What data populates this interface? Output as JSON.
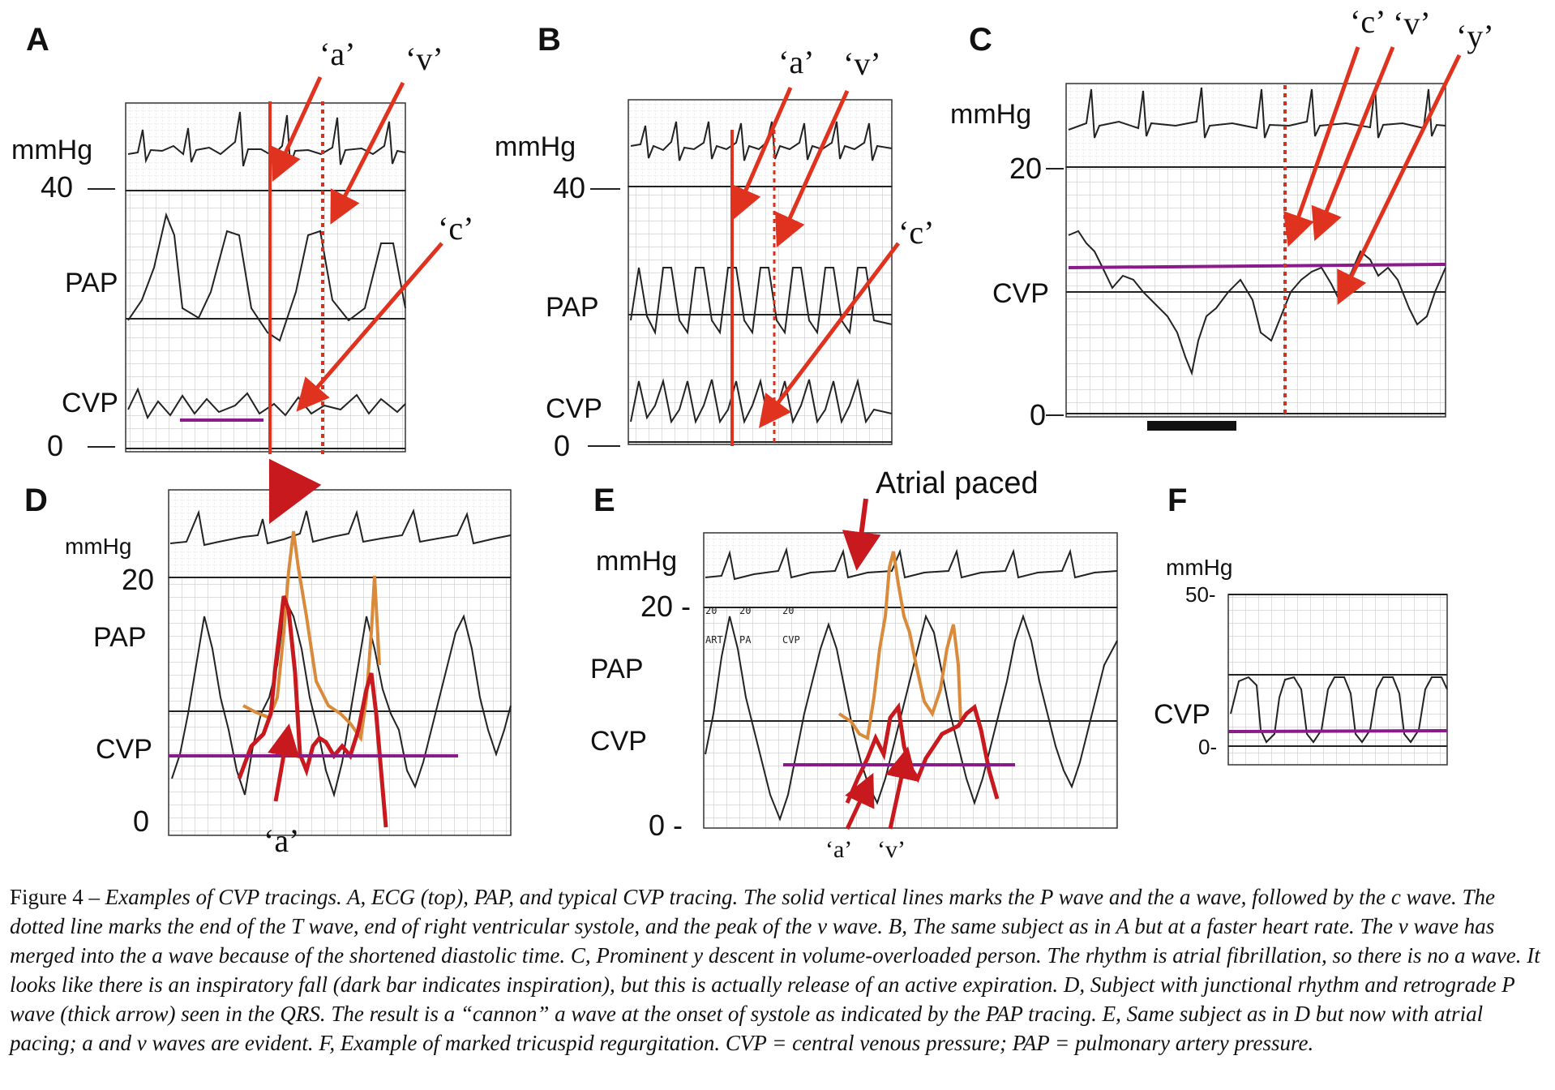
{
  "panels": {
    "A": {
      "letter": "A",
      "unit": "mmHg",
      "ticks": [
        "40",
        "0"
      ],
      "labels": [
        "PAP",
        "CVP"
      ],
      "waves": [
        "‘a’",
        "‘v’",
        "‘c’"
      ]
    },
    "B": {
      "letter": "B",
      "unit": "mmHg",
      "ticks": [
        "40",
        "0"
      ],
      "labels": [
        "PAP",
        "CVP"
      ],
      "waves": [
        "‘a’",
        "‘v’",
        "‘c’"
      ]
    },
    "C": {
      "letter": "C",
      "unit": "mmHg",
      "ticks": [
        "20",
        "0"
      ],
      "labels": [
        "CVP"
      ],
      "waves": [
        "‘c’",
        "‘v’",
        "‘y’"
      ]
    },
    "D": {
      "letter": "D",
      "unit": "mmHg",
      "ticks": [
        "20",
        "0"
      ],
      "labels": [
        "PAP",
        "CVP"
      ],
      "waves": [
        "‘a’"
      ]
    },
    "E": {
      "letter": "E",
      "unit": "mmHg",
      "ticks": [
        "20 -",
        "0 -"
      ],
      "labels": [
        "PAP",
        "CVP"
      ],
      "waves": [
        "‘a’",
        "‘v’"
      ],
      "annotation": "Atrial paced",
      "strip": [
        "20",
        "20",
        "20",
        "ART",
        "PA",
        "CVP"
      ]
    },
    "F": {
      "letter": "F",
      "unit": "mmHg",
      "ticks": [
        "50-",
        "0-"
      ],
      "labels": [
        "CVP"
      ]
    }
  },
  "caption": {
    "lead": "Figure 4 – ",
    "body": "Examples of CVP tracings. A, ECG (top), PAP, and typical CVP tracing. The solid vertical lines marks the P wave and the a wave, followed by the c wave. The dotted line marks the end of the T wave, end of right ventricular systole, and the peak of the v wave. B, The same subject as in A but at a faster heart rate. The v wave has merged into the a wave because of the shortened diastolic time. C, Prominent y descent in volume-overloaded person. The rhythm is atrial fibrillation, so there is no a wave. It looks like there is an inspiratory fall (dark bar indicates inspiration), but this is actually release of an active expiration. D, Subject with junctional rhythm and retrograde P wave (thick arrow) seen in the QRS. The result is a “cannon” a wave at the onset of systole as indicated by the PAP tracing. E, Same subject as in D but now with atrial pacing; a and v waves are evident. F, Example of marked tricuspid regurgitation. CVP = central venous pressure; PAP = pulmonary artery pressure."
  },
  "colors": {
    "red": "#e0331f",
    "dotted": "#d4321e",
    "purple": "#8b1a8b",
    "orange": "#d98a3a",
    "darkred": "#c8191e",
    "grid": "#b9b9b9",
    "trace": "#222222"
  }
}
